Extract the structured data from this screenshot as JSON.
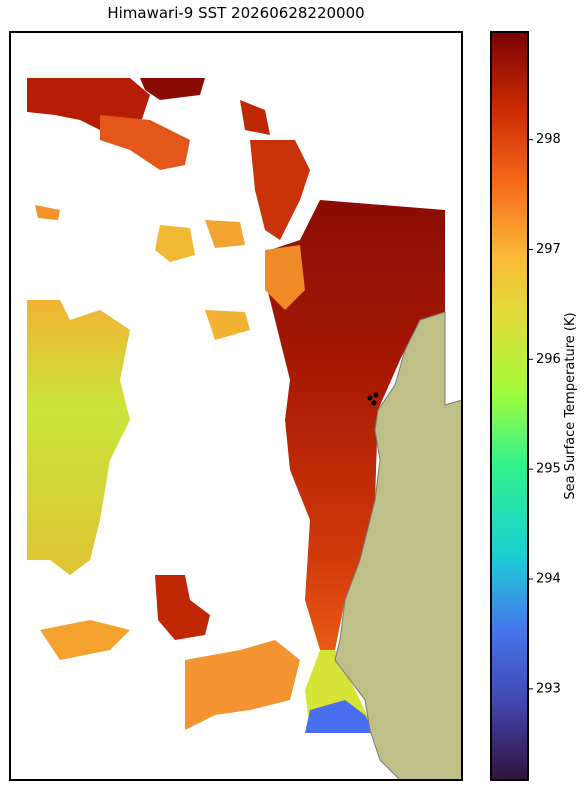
{
  "chart_data": {
    "type": "map",
    "title": "Himawari-9 SST 20260628220000",
    "colorbar": {
      "label": "Sea Surface Temperature (K)",
      "lim": [
        292.17,
        298.98
      ],
      "ticks": [
        293,
        294,
        295,
        296,
        297,
        298
      ]
    }
  }
}
